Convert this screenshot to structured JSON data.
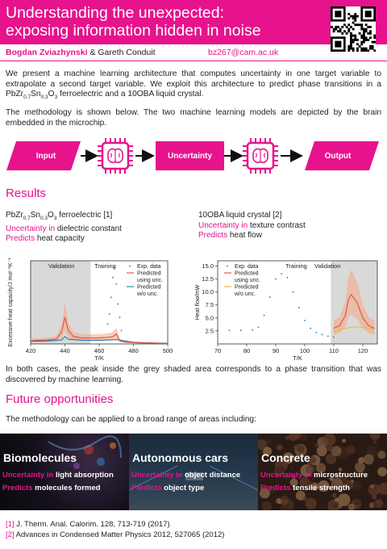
{
  "header": {
    "title_line1": "Understanding the unexpected:",
    "title_line2": "exposing information hidden in noise",
    "qr_icon": "qr-code-icon",
    "accent": "#e6138c"
  },
  "authors": {
    "author1": "Bogdan Zviazhynski",
    "connector": " & ",
    "author2": "Gareth Conduit",
    "email": "bz267@cam.ac.uk"
  },
  "intro": {
    "p1_part1": "We present a machine learning architecture that computes uncertainty in one target variable to extrapolate a second target variable. We exploit this architecture to predict phase transitions in a PbZr",
    "p1_sub1": "0.7",
    "p1_mid": "Sn",
    "p1_sub2": "0.3",
    "p1_part2": "O",
    "p1_sub3": "3",
    "p1_part3": " ferroelectric and a 10OBA liquid crystal.",
    "p2": "The methodology is shown below. The two machine learning models are depicted by the brain embedded in the microchip."
  },
  "flow": {
    "input_label": "Input",
    "middle_label": "Uncertainty",
    "output_label": "Output",
    "chip_icon": "brain-chip-icon",
    "arrow_icon": "arrow-right-icon"
  },
  "results": {
    "heading": "Results",
    "left": {
      "material_pre": "PbZr",
      "sub1": "0.7",
      "mid": "Sn",
      "sub2": "0.3",
      "mid2": "O",
      "sub3": "3",
      "material_post": " ferroelectric [1]",
      "unc_key": "Uncertainty in",
      "unc_val": " dielectric constant",
      "pred_key": "Predicts",
      "pred_val": " heat capacity"
    },
    "right": {
      "material": "10OBA liquid crystal [2]",
      "unc_key": "Uncertainty in",
      "unc_val": " texture contrast",
      "pred_key": "Predicts",
      "pred_val": " heat flow"
    },
    "caption": "In both cases, the peak inside the grey shaded area corresponds to a phase transition that was discovered by machine learning."
  },
  "chart_data": [
    {
      "type": "line",
      "xlabel": "T/K",
      "ylabel": "Excessive heat capacity/J mol⁻¹K⁻¹",
      "xlim": [
        420,
        500
      ],
      "xticks": [
        420,
        440,
        460,
        480,
        500
      ],
      "yticks": [],
      "shaded_region_label": "Validation",
      "training_label": "Training",
      "legend": [
        "Exp. data",
        "Predicted using unc.",
        "Predicted w/o unc."
      ],
      "legend_position": "top-right",
      "series": [
        {
          "name": "Exp. data",
          "x": [
            465,
            466,
            467,
            468,
            469,
            470,
            471,
            472,
            473
          ],
          "y": [
            60,
            90,
            140,
            200,
            230,
            180,
            120,
            80,
            40
          ]
        },
        {
          "name": "Predicted using unc.",
          "x": [
            420,
            425,
            430,
            435,
            438,
            440,
            442,
            445,
            450,
            455,
            460,
            465,
            468,
            470,
            472,
            475,
            480,
            485,
            490,
            495,
            500
          ],
          "y": [
            10,
            11,
            12,
            15,
            35,
            80,
            40,
            22,
            18,
            18,
            18,
            20,
            22,
            30,
            10,
            6,
            4,
            3,
            3,
            2,
            2
          ]
        },
        {
          "name": "Predicted w/o unc.",
          "x": [
            420,
            430,
            438,
            440,
            442,
            450,
            460,
            470,
            480,
            490,
            500
          ],
          "y": [
            8,
            9,
            12,
            22,
            14,
            11,
            11,
            13,
            5,
            3,
            2
          ]
        }
      ]
    },
    {
      "type": "line",
      "xlabel": "T/K",
      "ylabel": "Heat flow/mW",
      "xlim": [
        70,
        125
      ],
      "xticks": [
        70,
        80,
        90,
        100,
        110,
        120
      ],
      "ylim": [
        0,
        16
      ],
      "yticks": [
        2.5,
        5.0,
        7.5,
        10.0,
        12.5,
        15.0
      ],
      "shaded_region_label": "Validation",
      "training_label": "Training",
      "legend": [
        "Exp. data",
        "Predicted using unc.",
        "Predicted w/o unc."
      ],
      "legend_position": "top-left",
      "series": [
        {
          "name": "Exp. data",
          "x": [
            70,
            74,
            78,
            82,
            84,
            86,
            88,
            90,
            92,
            94,
            96,
            98,
            100,
            102,
            104,
            106,
            108,
            110
          ],
          "y": [
            2.6,
            2.6,
            2.6,
            2.7,
            3.2,
            5.5,
            9,
            12.5,
            13.5,
            12.8,
            10,
            7,
            4.5,
            3,
            2.2,
            1.8,
            1.5,
            1.3
          ]
        },
        {
          "name": "Predicted using unc.",
          "x": [
            110,
            112,
            114,
            115,
            116,
            118,
            120,
            122,
            124
          ],
          "y": [
            3,
            3.5,
            5.5,
            8.5,
            9.5,
            8,
            5,
            3.5,
            3
          ]
        },
        {
          "name": "Predicted w/o unc.",
          "x": [
            110,
            112,
            114,
            116,
            118,
            120,
            122,
            124
          ],
          "y": [
            2.5,
            2.7,
            3,
            3.2,
            3.3,
            3.2,
            3,
            2.8
          ]
        }
      ]
    }
  ],
  "future": {
    "heading": "Future opportunities",
    "intro": "The methodology can be applied to a broad range of areas including:",
    "cards": [
      {
        "title": "Biomolecules",
        "unc_key": "Uncertainty in",
        "unc_val": " light absorption",
        "pred_key": "Predicts",
        "pred_val": " molecules formed"
      },
      {
        "title": "Autonomous cars",
        "unc_key": "Uncertainty in",
        "unc_val": " object distance",
        "pred_key": "Predicts",
        "pred_val": " object type"
      },
      {
        "title": "Concrete",
        "unc_key": "Uncertainty in",
        "unc_val": " microstructure",
        "pred_key": "Predicts",
        "pred_val": " tensile strength"
      }
    ]
  },
  "references": [
    {
      "num": "[1]",
      "text": " J. Therm. Anal. Calorim. 128, 713-719 (2017)"
    },
    {
      "num": "[2]",
      "text": " Advances in Condensed Matter Physics 2012, 527065 (2012)"
    }
  ]
}
